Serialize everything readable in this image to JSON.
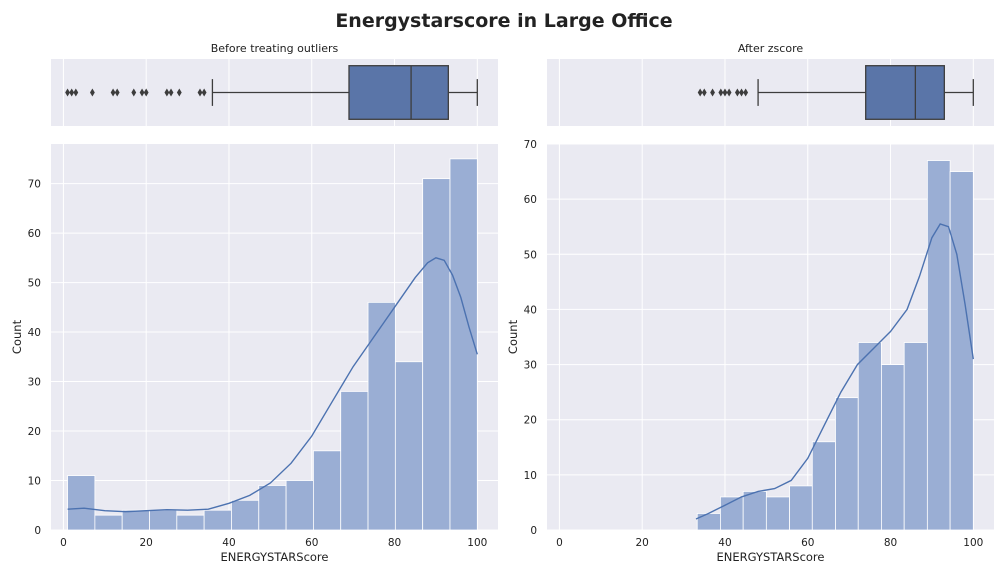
{
  "figure": {
    "title": "Energystarscore in Large Office"
  },
  "colors": {
    "background": "#eaeaf2",
    "grid": "#ffffff",
    "bar": "#9aaed4",
    "bar_edge": "#ffffff",
    "box": "#5a75a8",
    "line": "#4c72b0",
    "whisker": "#3d3d3d"
  },
  "chart_data": [
    {
      "type": "box",
      "title": "Before treating outliers",
      "xlim": [
        -3,
        105
      ],
      "q1": 69,
      "median": 84,
      "q3": 93,
      "whisker_low": 36,
      "whisker_high": 100,
      "outliers": [
        1,
        2,
        3,
        7,
        12,
        13,
        17,
        19,
        20,
        25,
        26,
        28,
        33,
        34
      ]
    },
    {
      "type": "bar",
      "subtype": "histogram_with_kde",
      "xlabel": "ENERGYSTARScore",
      "ylabel": "Count",
      "xlim": [
        -3,
        105
      ],
      "ylim": [
        0,
        78
      ],
      "xticks": [
        0,
        20,
        40,
        60,
        80,
        100
      ],
      "yticks": [
        0,
        10,
        20,
        30,
        40,
        50,
        60,
        70
      ],
      "bins": [
        {
          "x0": 1,
          "x1": 7.6,
          "count": 11
        },
        {
          "x0": 7.6,
          "x1": 14.2,
          "count": 3
        },
        {
          "x0": 14.2,
          "x1": 20.8,
          "count": 4
        },
        {
          "x0": 20.8,
          "x1": 27.4,
          "count": 4
        },
        {
          "x0": 27.4,
          "x1": 34,
          "count": 3
        },
        {
          "x0": 34,
          "x1": 40.6,
          "count": 4
        },
        {
          "x0": 40.6,
          "x1": 47.2,
          "count": 6
        },
        {
          "x0": 47.2,
          "x1": 53.8,
          "count": 9
        },
        {
          "x0": 53.8,
          "x1": 60.4,
          "count": 10
        },
        {
          "x0": 60.4,
          "x1": 67,
          "count": 16
        },
        {
          "x0": 67,
          "x1": 73.6,
          "count": 28
        },
        {
          "x0": 73.6,
          "x1": 80.2,
          "count": 46
        },
        {
          "x0": 80.2,
          "x1": 86.8,
          "count": 34
        },
        {
          "x0": 86.8,
          "x1": 93.4,
          "count": 71
        },
        {
          "x0": 93.4,
          "x1": 100,
          "count": 75
        }
      ],
      "kde": {
        "x": [
          1,
          5,
          10,
          15,
          20,
          25,
          30,
          35,
          40,
          45,
          50,
          55,
          60,
          65,
          70,
          75,
          80,
          85,
          88,
          90,
          92,
          94,
          96,
          98,
          100
        ],
        "y": [
          4.2,
          4.4,
          3.9,
          3.7,
          3.9,
          4.1,
          4.0,
          4.2,
          5.4,
          7.0,
          9.5,
          13.5,
          19,
          26,
          33,
          39,
          45,
          51,
          54,
          55,
          54.5,
          51.5,
          47,
          41,
          35.5
        ]
      }
    },
    {
      "type": "box",
      "title": "After zscore",
      "xlim": [
        -3,
        105
      ],
      "q1": 74,
      "median": 86,
      "q3": 93,
      "whisker_low": 48,
      "whisker_high": 100,
      "outliers": [
        34,
        35,
        37,
        39,
        40,
        41,
        43,
        44,
        45
      ]
    },
    {
      "type": "bar",
      "subtype": "histogram_with_kde",
      "xlabel": "ENERGYSTARScore",
      "ylabel": "Count",
      "xlim": [
        -3,
        105
      ],
      "ylim": [
        0,
        70
      ],
      "xticks": [
        0,
        20,
        40,
        60,
        80,
        100
      ],
      "yticks": [
        0,
        10,
        20,
        30,
        40,
        50,
        60,
        70
      ],
      "bins": [
        {
          "x0": 33.3,
          "x1": 38.9,
          "count": 3
        },
        {
          "x0": 38.9,
          "x1": 44.4,
          "count": 6
        },
        {
          "x0": 44.4,
          "x1": 50,
          "count": 7
        },
        {
          "x0": 50,
          "x1": 55.6,
          "count": 6
        },
        {
          "x0": 55.6,
          "x1": 61.1,
          "count": 8
        },
        {
          "x0": 61.1,
          "x1": 66.7,
          "count": 16
        },
        {
          "x0": 66.7,
          "x1": 72.2,
          "count": 24
        },
        {
          "x0": 72.2,
          "x1": 77.8,
          "count": 34
        },
        {
          "x0": 77.8,
          "x1": 83.3,
          "count": 30
        },
        {
          "x0": 83.3,
          "x1": 88.9,
          "count": 34
        },
        {
          "x0": 88.9,
          "x1": 94.4,
          "count": 67
        },
        {
          "x0": 94.4,
          "x1": 100,
          "count": 65
        }
      ],
      "kde": {
        "x": [
          33,
          36,
          40,
          44,
          48,
          52,
          56,
          60,
          64,
          68,
          72,
          76,
          80,
          84,
          87,
          90,
          92,
          94,
          96,
          98,
          100
        ],
        "y": [
          2,
          3,
          4.5,
          6,
          7,
          7.5,
          9,
          13,
          19,
          25,
          30,
          33,
          36,
          40,
          46,
          53,
          55.5,
          55,
          50,
          41,
          31
        ]
      }
    }
  ]
}
